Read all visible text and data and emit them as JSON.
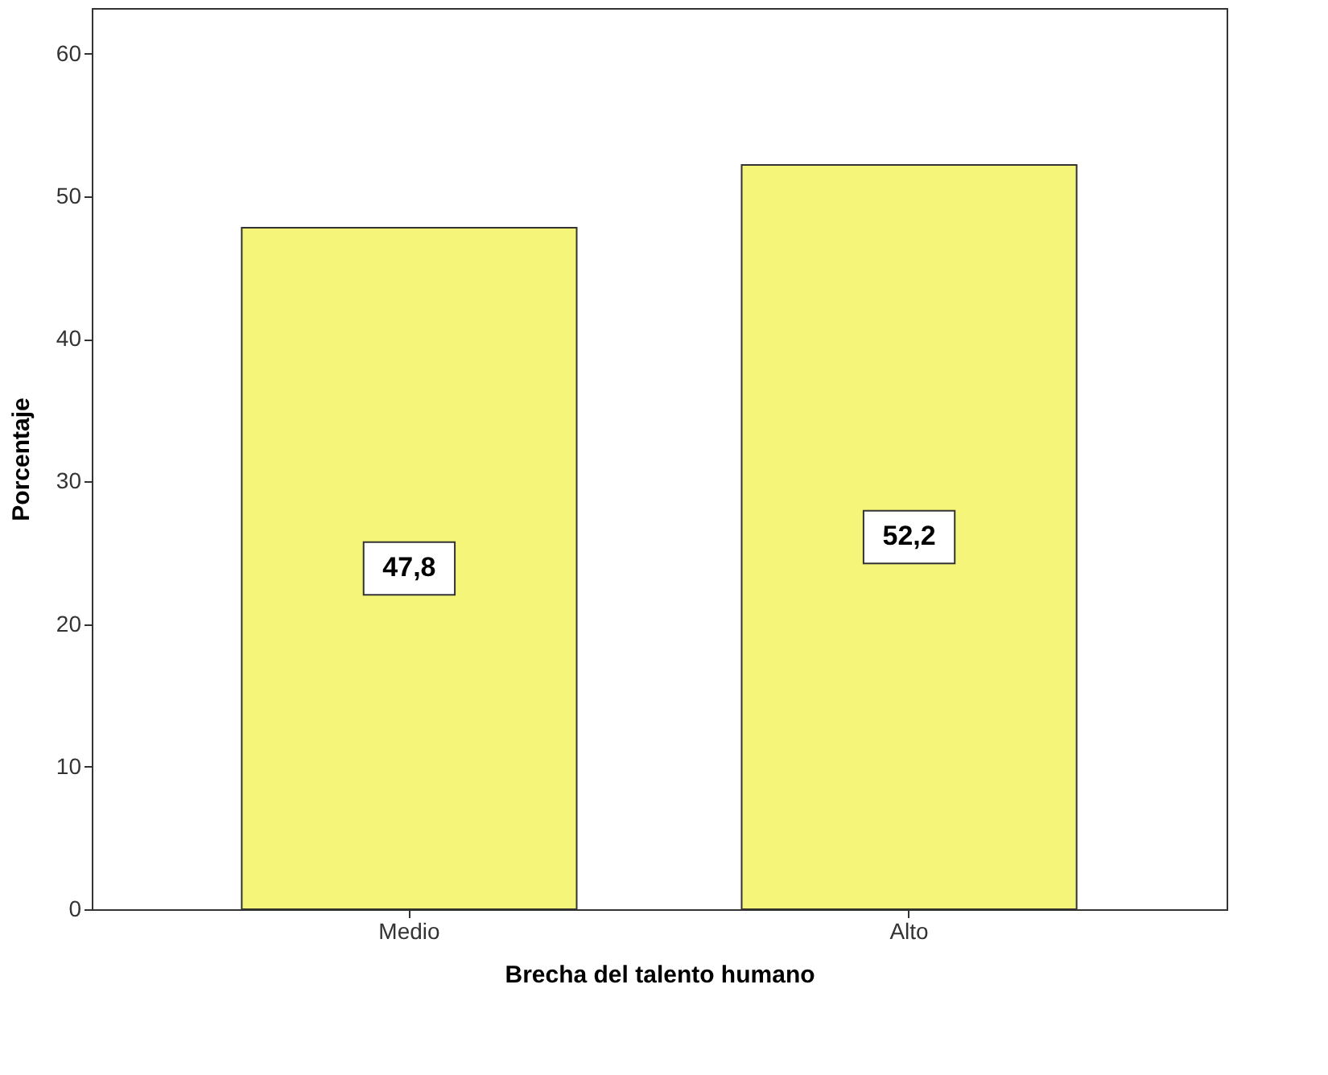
{
  "chart_data": {
    "type": "bar",
    "xlabel": "Brecha del talento humano",
    "ylabel": "Porcentaje",
    "categories": [
      "Medio",
      "Alto"
    ],
    "values": [
      47.8,
      52.2
    ],
    "value_labels": [
      "47,8",
      "52,2"
    ],
    "color": "#f5f57a",
    "ylim": [
      0,
      63.2
    ],
    "yticks": [
      0,
      10,
      20,
      30,
      40,
      50,
      60
    ],
    "grid": false
  }
}
